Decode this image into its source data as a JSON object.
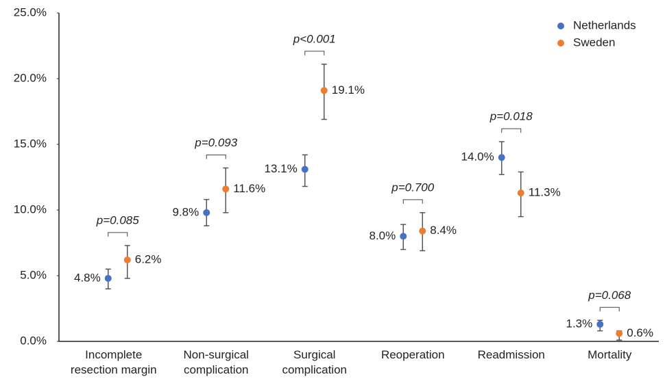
{
  "chart_data": {
    "type": "dot_errorbar",
    "categories": [
      "Incomplete resection margin",
      "Non-surgical complication",
      "Surgical complication",
      "Reoperation",
      "Readmission",
      "Mortality"
    ],
    "series": [
      {
        "name": "Netherlands",
        "color": "#4472c4",
        "values": [
          4.8,
          9.8,
          13.1,
          8.0,
          14.0,
          1.3
        ],
        "value_labels": [
          "4.8%",
          "9.8%",
          "13.1%",
          "8.0%",
          "14.0%",
          "1.3%"
        ],
        "ci_low": [
          4.0,
          8.8,
          11.8,
          7.0,
          12.7,
          0.8
        ],
        "ci_high": [
          5.5,
          10.8,
          14.2,
          8.9,
          15.2,
          1.6
        ]
      },
      {
        "name": "Sweden",
        "color": "#ed7d31",
        "values": [
          6.2,
          11.6,
          19.1,
          8.4,
          11.3,
          0.6
        ],
        "value_labels": [
          "6.2%",
          "11.6%",
          "19.1%",
          "8.4%",
          "11.3%",
          "0.6%"
        ],
        "ci_low": [
          4.8,
          9.8,
          16.9,
          6.9,
          9.5,
          0.1
        ],
        "ci_high": [
          7.3,
          13.2,
          21.1,
          9.8,
          12.9,
          0.8
        ]
      }
    ],
    "annotations": [
      "p=0.085",
      "p=0.093",
      "p<0.001",
      "p=0.700",
      "p=0.018",
      "p=0.068"
    ],
    "ylim": [
      0,
      25
    ],
    "yticks": [
      {
        "value": 0,
        "label": "0.0%"
      },
      {
        "value": 5,
        "label": "5.0%"
      },
      {
        "value": 10,
        "label": "10.0%"
      },
      {
        "value": 15,
        "label": "15.0%"
      },
      {
        "value": 20,
        "label": "20.0%"
      },
      {
        "value": 25,
        "label": "25.0%"
      }
    ],
    "grid": false,
    "legend": "top-right"
  }
}
